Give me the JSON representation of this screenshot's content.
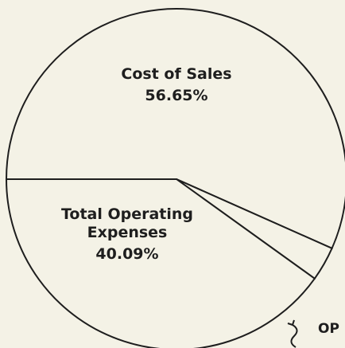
{
  "chart_data": {
    "type": "pie",
    "categories": [
      "Cost of Sales",
      "OP",
      "Total Operating Expenses"
    ],
    "values": [
      56.65,
      3.26,
      40.09
    ],
    "value_labels": [
      "56.65%",
      null,
      "40.09%"
    ],
    "color": "#f4f2e6",
    "stroke": "#1e1e1e"
  }
}
